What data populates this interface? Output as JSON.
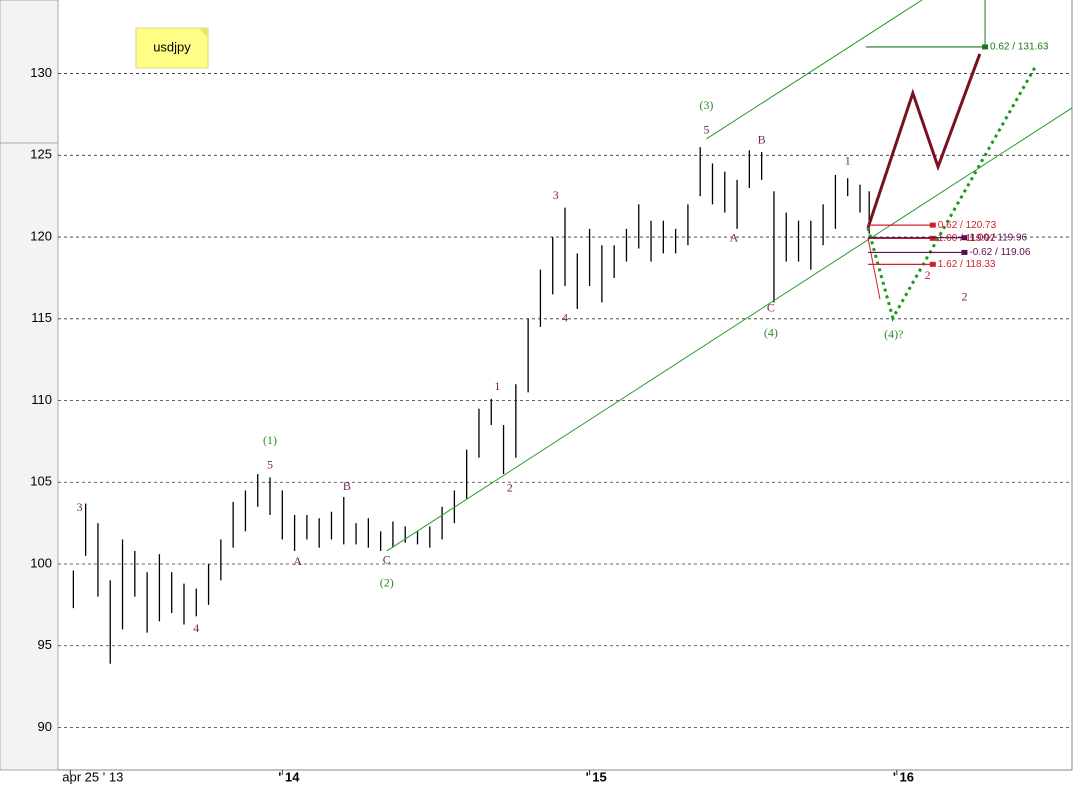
{
  "chart_data": {
    "type": "ohlc",
    "title": "usdjpy",
    "x": [
      2013.32,
      2013.36,
      2013.4,
      2013.44,
      2013.48,
      2013.52,
      2013.56,
      2013.6,
      2013.64,
      2013.68,
      2013.72,
      2013.76,
      2013.8,
      2013.84,
      2013.88,
      2013.92,
      2013.96,
      2014.0,
      2014.04,
      2014.08,
      2014.12,
      2014.16,
      2014.2,
      2014.24,
      2014.28,
      2014.32,
      2014.36,
      2014.4,
      2014.44,
      2014.48,
      2014.52,
      2014.56,
      2014.6,
      2014.64,
      2014.68,
      2014.72,
      2014.76,
      2014.8,
      2014.84,
      2014.88,
      2014.92,
      2014.96,
      2015.0,
      2015.04,
      2015.08,
      2015.12,
      2015.16,
      2015.2,
      2015.24,
      2015.28,
      2015.32,
      2015.36,
      2015.4,
      2015.44,
      2015.48,
      2015.52,
      2015.56,
      2015.6,
      2015.64,
      2015.68,
      2015.72,
      2015.76,
      2015.8,
      2015.84,
      2015.88,
      2015.91
    ],
    "series": [
      {
        "name": "low",
        "color": "#000000",
        "values": [
          97.3,
          100.5,
          98,
          93.9,
          96,
          98,
          95.8,
          96.5,
          97,
          96.3,
          96.8,
          97.5,
          99,
          101,
          102,
          103.5,
          103,
          101.5,
          100.8,
          101.5,
          101,
          101.5,
          101.2,
          101.2,
          101,
          100.8,
          101,
          101.3,
          101.2,
          101,
          101.5,
          102.5,
          104,
          106.5,
          108.5,
          105.5,
          106.5,
          110.5,
          114.5,
          116.5,
          117,
          115.6,
          117,
          116,
          117.5,
          118.5,
          119.3,
          118.5,
          119,
          119,
          119.5,
          122.5,
          122,
          121.5,
          120.5,
          123,
          123.5,
          116,
          118.5,
          118.5,
          118,
          119.5,
          120.5,
          122.5,
          121.5,
          120.2
        ]
      },
      {
        "name": "high",
        "color": "#000000",
        "values": [
          99.6,
          103.7,
          102.5,
          99,
          101.5,
          100.8,
          99.5,
          100.6,
          99.5,
          98.8,
          98.5,
          100,
          101.5,
          103.8,
          104.5,
          105.5,
          105.3,
          104.5,
          103,
          103,
          102.8,
          103.2,
          104.1,
          102.5,
          102.8,
          102,
          102.6,
          102.3,
          102,
          102.3,
          103.5,
          104.5,
          107,
          109.5,
          110.1,
          108.5,
          111,
          115,
          118,
          120,
          121.8,
          119,
          120.5,
          119.5,
          119.5,
          120.5,
          122,
          121,
          121,
          120.5,
          122,
          125.5,
          124.5,
          124,
          123.5,
          125.3,
          125.2,
          122.8,
          121.5,
          121,
          121,
          122,
          123.8,
          123.6,
          123.2,
          122.8
        ]
      }
    ],
    "xlim": [
      2013.27,
      2016.57
    ],
    "ylim": [
      87.4,
      134.5
    ],
    "xticks": [
      {
        "value": 2013.31,
        "label": "apr 25 ' 13"
      },
      {
        "value": 2014,
        "label": "' 14"
      },
      {
        "value": 2015,
        "label": "' 15"
      },
      {
        "value": 2016,
        "label": "' 16"
      }
    ],
    "yticks": [
      90,
      95,
      100,
      105,
      110,
      115,
      120,
      125,
      130
    ],
    "grid": true,
    "annotations": [
      {
        "text": "3",
        "x": 2013.34,
        "y": 103.4,
        "color": "#7a1f5c"
      },
      {
        "text": "4",
        "x": 2013.72,
        "y": 96,
        "color": "#7a1f5c"
      },
      {
        "text": "5",
        "x": 2013.96,
        "y": 106,
        "color": "#7a1f5c"
      },
      {
        "text": "(1)",
        "x": 2013.96,
        "y": 107.5,
        "color": "#2a8a2a"
      },
      {
        "text": "A",
        "x": 2014.05,
        "y": 100.1,
        "color": "#7a1f5c"
      },
      {
        "text": "B",
        "x": 2014.21,
        "y": 104.7,
        "color": "#7a1f5c"
      },
      {
        "text": "C",
        "x": 2014.34,
        "y": 100.2,
        "color": "#7a1f5c"
      },
      {
        "text": "(2)",
        "x": 2014.34,
        "y": 98.8,
        "color": "#2a8a2a"
      },
      {
        "text": "1",
        "x": 2014.7,
        "y": 110.8,
        "color": "#7a1f5c"
      },
      {
        "text": "2",
        "x": 2014.74,
        "y": 104.6,
        "color": "#7a1f5c"
      },
      {
        "text": "3",
        "x": 2014.89,
        "y": 122.5,
        "color": "#7a1f5c"
      },
      {
        "text": "4",
        "x": 2014.92,
        "y": 115,
        "color": "#7a1f5c"
      },
      {
        "text": "5",
        "x": 2015.38,
        "y": 126.5,
        "color": "#7a1f5c"
      },
      {
        "text": "(3)",
        "x": 2015.38,
        "y": 128,
        "color": "#2a8a2a"
      },
      {
        "text": "A",
        "x": 2015.47,
        "y": 119.9,
        "color": "#7a1f5c"
      },
      {
        "text": "B",
        "x": 2015.56,
        "y": 125.9,
        "color": "#7a1f5c"
      },
      {
        "text": "C",
        "x": 2015.59,
        "y": 115.6,
        "color": "#7a1f5c"
      },
      {
        "text": "(4)",
        "x": 2015.59,
        "y": 114.1,
        "color": "#2a8a2a"
      },
      {
        "text": "1",
        "x": 2015.84,
        "y": 124.6,
        "color": "#7a1f5c"
      },
      {
        "text": "(4)?",
        "x": 2015.99,
        "y": 114,
        "color": "#2a8a2a"
      },
      {
        "text": "2",
        "x": 2016.1,
        "y": 117.6,
        "color": "#d0202a"
      },
      {
        "text": "2",
        "x": 2016.22,
        "y": 116.3,
        "color": "#7a1f5c"
      }
    ],
    "lines": [
      {
        "color": "#2a9a2a",
        "width": 1,
        "dash": false,
        "x": [
          2014.34,
          2016.57
        ],
        "y": [
          100.8,
          127.9
        ]
      },
      {
        "color": "#2a9a2a",
        "width": 1,
        "dash": false,
        "x": [
          2015.38,
          2016.09
        ],
        "y": [
          126,
          134.6
        ]
      },
      {
        "color": "#7a1020",
        "width": 3,
        "dash": false,
        "x": [
          2015.906,
          2016.052,
          2016.134,
          2016.27
        ],
        "y": [
          120.56,
          128.8,
          124.3,
          131.2
        ]
      },
      {
        "color": "#1a9a1a",
        "width": 3,
        "dash": true,
        "x": [
          2015.906,
          2015.987,
          2016.453
        ],
        "y": [
          120.56,
          115.05,
          130.5
        ]
      },
      {
        "color": "#1a7a1a",
        "width": 1,
        "dash": false,
        "x": [
          2016.287,
          2016.287
        ],
        "y": [
          131.63,
          134.5
        ]
      },
      {
        "color": "#d0202a",
        "width": 1,
        "dash": false,
        "x": [
          2015.906,
          2015.945
        ],
        "y": [
          119.95,
          116.2
        ]
      }
    ],
    "levels": [
      {
        "label": "0.62 / 131.63",
        "y": 131.63,
        "x": [
          2015.899,
          2016.287
        ],
        "color": "#1a7a1a"
      },
      {
        "label": "0.62 / 120.73",
        "y": 120.73,
        "x": [
          2015.906,
          2016.117
        ],
        "color": "#d0202a"
      },
      {
        "label": "1.00 / 119.92",
        "y": 119.92,
        "x": [
          2015.906,
          2016.117
        ],
        "color": "#d0202a"
      },
      {
        "label": "1.00 / 119.96",
        "y": 119.96,
        "x": [
          2015.906,
          2016.22
        ],
        "color": "#5a1050"
      },
      {
        "label": "-0.62 / 119.06",
        "y": 119.06,
        "x": [
          2015.906,
          2016.22
        ],
        "color": "#5a1050"
      },
      {
        "label": "1.62 / 118.33",
        "y": 118.33,
        "x": [
          2015.906,
          2016.117
        ],
        "color": "#d0202a"
      }
    ]
  }
}
